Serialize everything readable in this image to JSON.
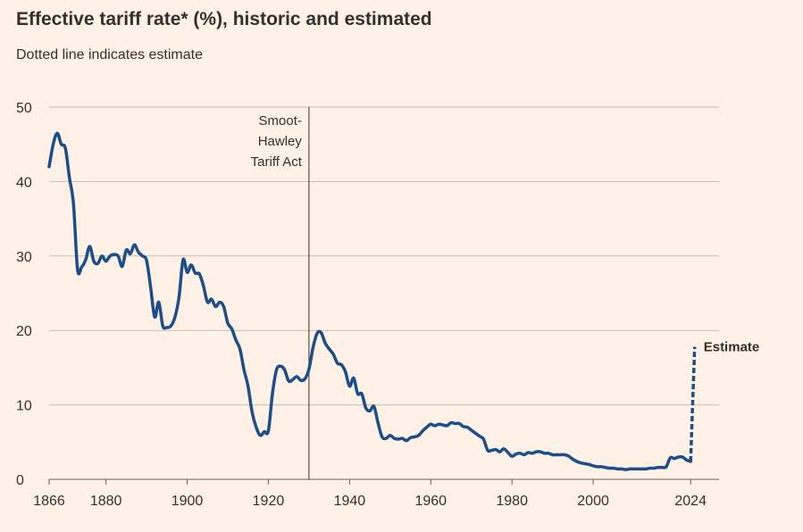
{
  "chart_data": {
    "type": "line",
    "title": "Effective tariff rate* (%), historic and estimated",
    "subtitle": "Dotted line indicates estimate",
    "xlabel": "",
    "ylabel": "",
    "xlim": [
      1866,
      2031
    ],
    "ylim": [
      0,
      50
    ],
    "yticks": [
      0,
      10,
      20,
      30,
      40,
      50
    ],
    "xticks": [
      1866,
      1880,
      1900,
      1920,
      1940,
      1960,
      1980,
      2000,
      2024
    ],
    "xtick_labels": [
      "1866",
      "1880",
      "1900",
      "1920",
      "1940",
      "1960",
      "1980",
      "2000",
      "2024"
    ],
    "grid": true,
    "series": [
      {
        "name": "Effective tariff rate (historic)",
        "style": "solid",
        "color": "#1a4f8b",
        "points": [
          [
            1866,
            42
          ],
          [
            1867,
            45
          ],
          [
            1868,
            46.5
          ],
          [
            1869,
            45
          ],
          [
            1870,
            44.5
          ],
          [
            1871,
            40.5
          ],
          [
            1872,
            37
          ],
          [
            1873,
            28.2
          ],
          [
            1874,
            28.5
          ],
          [
            1875,
            29.5
          ],
          [
            1876,
            31.3
          ],
          [
            1877,
            29.3
          ],
          [
            1878,
            29
          ],
          [
            1879,
            30
          ],
          [
            1880,
            29.3
          ],
          [
            1881,
            30
          ],
          [
            1882,
            30.2
          ],
          [
            1883,
            30
          ],
          [
            1884,
            28.6
          ],
          [
            1885,
            30.8
          ],
          [
            1886,
            30.3
          ],
          [
            1887,
            31.5
          ],
          [
            1888,
            30.5
          ],
          [
            1889,
            30
          ],
          [
            1890,
            29.4
          ],
          [
            1891,
            25.8
          ],
          [
            1892,
            21.8
          ],
          [
            1893,
            23.8
          ],
          [
            1894,
            20.6
          ],
          [
            1895,
            20.4
          ],
          [
            1896,
            20.6
          ],
          [
            1897,
            21.8
          ],
          [
            1898,
            24.5
          ],
          [
            1899,
            29.5
          ],
          [
            1900,
            27.8
          ],
          [
            1901,
            28.8
          ],
          [
            1902,
            27.7
          ],
          [
            1903,
            27.6
          ],
          [
            1904,
            26
          ],
          [
            1905,
            23.8
          ],
          [
            1906,
            24.2
          ],
          [
            1907,
            23.2
          ],
          [
            1908,
            23.8
          ],
          [
            1909,
            23.2
          ],
          [
            1910,
            21
          ],
          [
            1911,
            20.2
          ],
          [
            1912,
            18.7
          ],
          [
            1913,
            17.5
          ],
          [
            1914,
            14.7
          ],
          [
            1915,
            12.5
          ],
          [
            1916,
            9
          ],
          [
            1917,
            7
          ],
          [
            1918,
            5.9
          ],
          [
            1919,
            6.4
          ],
          [
            1920,
            6.5
          ],
          [
            1921,
            11.5
          ],
          [
            1922,
            14.7
          ],
          [
            1923,
            15.2
          ],
          [
            1924,
            14.7
          ],
          [
            1925,
            13.2
          ],
          [
            1926,
            13.4
          ],
          [
            1927,
            13.8
          ],
          [
            1928,
            13.3
          ],
          [
            1929,
            13.5
          ],
          [
            1930,
            14.8
          ],
          [
            1931,
            17.7
          ],
          [
            1932,
            19.6
          ],
          [
            1933,
            19.7
          ],
          [
            1934,
            18.3
          ],
          [
            1935,
            17.5
          ],
          [
            1936,
            16.8
          ],
          [
            1937,
            15.6
          ],
          [
            1938,
            15.4
          ],
          [
            1939,
            14.4
          ],
          [
            1940,
            12.5
          ],
          [
            1941,
            13.6
          ],
          [
            1942,
            11.5
          ],
          [
            1943,
            11.5
          ],
          [
            1944,
            9.6
          ],
          [
            1945,
            9.2
          ],
          [
            1946,
            9.8
          ],
          [
            1947,
            7.6
          ],
          [
            1948,
            5.7
          ],
          [
            1949,
            5.5
          ],
          [
            1950,
            5.9
          ],
          [
            1951,
            5.5
          ],
          [
            1952,
            5.4
          ],
          [
            1953,
            5.5
          ],
          [
            1954,
            5.2
          ],
          [
            1955,
            5.6
          ],
          [
            1956,
            5.7
          ],
          [
            1957,
            5.9
          ],
          [
            1958,
            6.5
          ],
          [
            1959,
            7
          ],
          [
            1960,
            7.4
          ],
          [
            1961,
            7.2
          ],
          [
            1962,
            7.4
          ],
          [
            1963,
            7.3
          ],
          [
            1964,
            7.2
          ],
          [
            1965,
            7.6
          ],
          [
            1966,
            7.5
          ],
          [
            1967,
            7.5
          ],
          [
            1968,
            7.1
          ],
          [
            1969,
            7
          ],
          [
            1970,
            6.6
          ],
          [
            1971,
            6.2
          ],
          [
            1972,
            5.8
          ],
          [
            1973,
            5.4
          ],
          [
            1974,
            3.9
          ],
          [
            1975,
            3.9
          ],
          [
            1976,
            4
          ],
          [
            1977,
            3.7
          ],
          [
            1978,
            4.1
          ],
          [
            1979,
            3.6
          ],
          [
            1980,
            3.1
          ],
          [
            1981,
            3.4
          ],
          [
            1982,
            3.5
          ],
          [
            1983,
            3.3
          ],
          [
            1984,
            3.6
          ],
          [
            1985,
            3.5
          ],
          [
            1986,
            3.7
          ],
          [
            1987,
            3.7
          ],
          [
            1988,
            3.5
          ],
          [
            1989,
            3.5
          ],
          [
            1990,
            3.3
          ],
          [
            1991,
            3.3
          ],
          [
            1992,
            3.3
          ],
          [
            1993,
            3.3
          ],
          [
            1994,
            3.1
          ],
          [
            1995,
            2.7
          ],
          [
            1996,
            2.4
          ],
          [
            1997,
            2.2
          ],
          [
            1998,
            2.1
          ],
          [
            1999,
            2
          ],
          [
            2000,
            1.8
          ],
          [
            2001,
            1.7
          ],
          [
            2002,
            1.7
          ],
          [
            2003,
            1.6
          ],
          [
            2004,
            1.5
          ],
          [
            2005,
            1.5
          ],
          [
            2006,
            1.4
          ],
          [
            2007,
            1.4
          ],
          [
            2008,
            1.3
          ],
          [
            2009,
            1.4
          ],
          [
            2010,
            1.4
          ],
          [
            2011,
            1.4
          ],
          [
            2012,
            1.4
          ],
          [
            2013,
            1.4
          ],
          [
            2014,
            1.5
          ],
          [
            2015,
            1.5
          ],
          [
            2016,
            1.6
          ],
          [
            2017,
            1.6
          ],
          [
            2018,
            1.7
          ],
          [
            2019,
            2.9
          ],
          [
            2020,
            2.8
          ],
          [
            2021,
            3.0
          ],
          [
            2022,
            3.0
          ],
          [
            2023,
            2.6
          ],
          [
            2024,
            2.4
          ]
        ]
      },
      {
        "name": "Estimate",
        "style": "dotted",
        "color": "#1a4f8b",
        "points": [
          [
            2024,
            2.4
          ],
          [
            2025,
            17.8
          ]
        ]
      }
    ],
    "annotations": [
      {
        "type": "vline",
        "x": 1930,
        "label_lines": [
          "Smoot-",
          "Hawley",
          "Tariff Act"
        ]
      },
      {
        "type": "point-label",
        "x": 2025,
        "y": 17.8,
        "text": "Estimate"
      }
    ]
  }
}
